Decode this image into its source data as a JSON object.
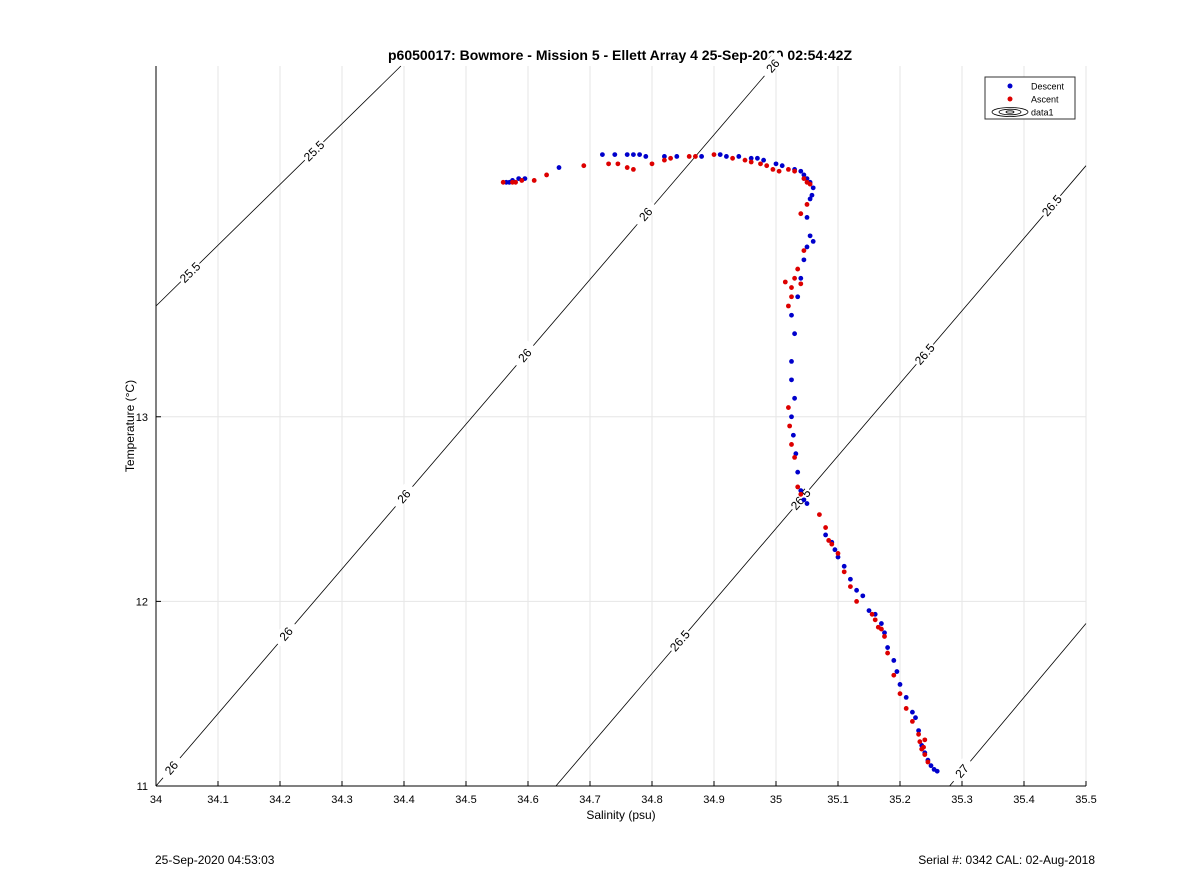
{
  "colors": {
    "descent": "#0000cc",
    "ascent": "#dd0000",
    "grid": "#e6e6e6",
    "isopycnal": "#000000"
  },
  "footer": {
    "timestamp": "25-Sep-2020 04:53:03",
    "serial_cal": "Serial #: 0342  CAL: 02-Aug-2018"
  },
  "chart_data": {
    "type": "scatter",
    "title": "p6050017: Bowmore - Mission 5 - Ellett Array 4 25-Sep-2020 02:54:42Z",
    "xlabel": "Salinity (psu)",
    "ylabel": "Temperature (°C)",
    "xlim": [
      34,
      35.5
    ],
    "ylim": [
      11,
      14.9
    ],
    "x_ticks": [
      "34",
      "34.1",
      "34.2",
      "34.3",
      "34.4",
      "34.5",
      "34.6",
      "34.7",
      "34.8",
      "34.9",
      "35",
      "35.1",
      "35.2",
      "35.3",
      "35.4",
      "35.5"
    ],
    "y_ticks": [
      "11",
      "12",
      "13"
    ],
    "grid": true,
    "legend": {
      "placement": "top-right",
      "entries": [
        "Descent",
        "Ascent",
        "data1"
      ]
    },
    "isopycnals": [
      {
        "label": "25.5",
        "x": [
          34.0,
          34.395
        ],
        "y": [
          13.6,
          14.9
        ],
        "label_x": [
          34.055,
          34.255
        ]
      },
      {
        "label": "26",
        "x": [
          34.0,
          34.995
        ],
        "y": [
          11.0,
          14.9
        ],
        "label_x": [
          34.025,
          34.21,
          34.4,
          34.595,
          34.79,
          34.995
        ]
      },
      {
        "label": "26.5",
        "x": [
          34.645,
          35.5
        ],
        "y": [
          11.0,
          14.36
        ],
        "label_x": [
          34.845,
          35.04,
          35.24,
          35.445
        ]
      },
      {
        "label": "27",
        "x": [
          35.28,
          35.5
        ],
        "y": [
          11.0,
          11.88
        ],
        "label_x": [
          35.3
        ]
      }
    ],
    "series": [
      {
        "name": "Descent",
        "points": [
          [
            34.585,
            14.29
          ],
          [
            34.575,
            14.28
          ],
          [
            34.57,
            14.27
          ],
          [
            34.595,
            14.29
          ],
          [
            34.565,
            14.27
          ],
          [
            34.65,
            14.35
          ],
          [
            34.72,
            14.42
          ],
          [
            34.74,
            14.42
          ],
          [
            34.76,
            14.42
          ],
          [
            34.78,
            14.42
          ],
          [
            34.77,
            14.42
          ],
          [
            34.79,
            14.41
          ],
          [
            34.82,
            14.41
          ],
          [
            34.84,
            14.41
          ],
          [
            34.88,
            14.41
          ],
          [
            34.91,
            14.42
          ],
          [
            34.92,
            14.41
          ],
          [
            34.94,
            14.41
          ],
          [
            34.96,
            14.4
          ],
          [
            34.97,
            14.4
          ],
          [
            34.98,
            14.39
          ],
          [
            35.0,
            14.37
          ],
          [
            35.01,
            14.36
          ],
          [
            35.03,
            14.34
          ],
          [
            35.04,
            14.33
          ],
          [
            35.045,
            14.31
          ],
          [
            35.05,
            14.29
          ],
          [
            35.055,
            14.27
          ],
          [
            35.06,
            14.24
          ],
          [
            35.058,
            14.2
          ],
          [
            35.055,
            14.18
          ],
          [
            35.05,
            14.08
          ],
          [
            35.055,
            13.98
          ],
          [
            35.06,
            13.95
          ],
          [
            35.05,
            13.92
          ],
          [
            35.045,
            13.85
          ],
          [
            35.04,
            13.75
          ],
          [
            35.035,
            13.65
          ],
          [
            35.025,
            13.55
          ],
          [
            35.03,
            13.45
          ],
          [
            35.025,
            13.3
          ],
          [
            35.025,
            13.2
          ],
          [
            35.03,
            13.1
          ],
          [
            35.025,
            13.0
          ],
          [
            35.028,
            12.9
          ],
          [
            35.032,
            12.8
          ],
          [
            35.035,
            12.7
          ],
          [
            35.04,
            12.6
          ],
          [
            35.045,
            12.55
          ],
          [
            35.05,
            12.53
          ],
          [
            35.08,
            12.36
          ],
          [
            35.09,
            12.32
          ],
          [
            35.095,
            12.28
          ],
          [
            35.1,
            12.24
          ],
          [
            35.11,
            12.19
          ],
          [
            35.12,
            12.12
          ],
          [
            35.13,
            12.06
          ],
          [
            35.14,
            12.03
          ],
          [
            35.15,
            11.95
          ],
          [
            35.16,
            11.93
          ],
          [
            35.17,
            11.88
          ],
          [
            35.175,
            11.83
          ],
          [
            35.18,
            11.75
          ],
          [
            35.19,
            11.68
          ],
          [
            35.195,
            11.62
          ],
          [
            35.2,
            11.55
          ],
          [
            35.21,
            11.48
          ],
          [
            35.22,
            11.4
          ],
          [
            35.225,
            11.37
          ],
          [
            35.23,
            11.3
          ],
          [
            35.235,
            11.22
          ],
          [
            35.24,
            11.18
          ],
          [
            35.245,
            11.14
          ],
          [
            35.25,
            11.11
          ],
          [
            35.255,
            11.09
          ],
          [
            35.26,
            11.08
          ]
        ]
      },
      {
        "name": "Ascent",
        "points": [
          [
            34.56,
            14.27
          ],
          [
            34.575,
            14.27
          ],
          [
            34.58,
            14.27
          ],
          [
            34.59,
            14.28
          ],
          [
            34.61,
            14.28
          ],
          [
            34.63,
            14.31
          ],
          [
            34.69,
            14.36
          ],
          [
            34.73,
            14.37
          ],
          [
            34.745,
            14.37
          ],
          [
            34.76,
            14.35
          ],
          [
            34.77,
            14.34
          ],
          [
            34.8,
            14.37
          ],
          [
            34.82,
            14.39
          ],
          [
            34.83,
            14.4
          ],
          [
            34.86,
            14.41
          ],
          [
            34.87,
            14.41
          ],
          [
            34.9,
            14.42
          ],
          [
            34.93,
            14.4
          ],
          [
            34.95,
            14.39
          ],
          [
            34.96,
            14.38
          ],
          [
            34.975,
            14.37
          ],
          [
            34.985,
            14.36
          ],
          [
            34.995,
            14.34
          ],
          [
            35.005,
            14.33
          ],
          [
            35.02,
            14.34
          ],
          [
            35.03,
            14.33
          ],
          [
            35.045,
            14.29
          ],
          [
            35.05,
            14.27
          ],
          [
            35.055,
            14.26
          ],
          [
            35.05,
            14.15
          ],
          [
            35.04,
            14.1
          ],
          [
            35.045,
            13.9
          ],
          [
            35.035,
            13.8
          ],
          [
            35.04,
            13.72
          ],
          [
            35.03,
            13.75
          ],
          [
            35.025,
            13.7
          ],
          [
            35.015,
            13.73
          ],
          [
            35.02,
            13.6
          ],
          [
            35.025,
            13.65
          ],
          [
            35.02,
            13.05
          ],
          [
            35.022,
            12.95
          ],
          [
            35.025,
            12.85
          ],
          [
            35.03,
            12.78
          ],
          [
            35.035,
            12.62
          ],
          [
            35.04,
            12.58
          ],
          [
            35.07,
            12.47
          ],
          [
            35.08,
            12.4
          ],
          [
            35.085,
            12.33
          ],
          [
            35.09,
            12.31
          ],
          [
            35.1,
            12.26
          ],
          [
            35.11,
            12.16
          ],
          [
            35.12,
            12.08
          ],
          [
            35.13,
            12.0
          ],
          [
            35.155,
            11.93
          ],
          [
            35.16,
            11.9
          ],
          [
            35.165,
            11.86
          ],
          [
            35.17,
            11.85
          ],
          [
            35.175,
            11.81
          ],
          [
            35.18,
            11.72
          ],
          [
            35.19,
            11.6
          ],
          [
            35.2,
            11.5
          ],
          [
            35.21,
            11.42
          ],
          [
            35.22,
            11.35
          ],
          [
            35.23,
            11.28
          ],
          [
            35.232,
            11.24
          ],
          [
            35.235,
            11.2
          ],
          [
            35.24,
            11.17
          ],
          [
            35.245,
            11.13
          ],
          [
            35.238,
            11.21
          ],
          [
            35.24,
            11.25
          ]
        ]
      }
    ]
  }
}
